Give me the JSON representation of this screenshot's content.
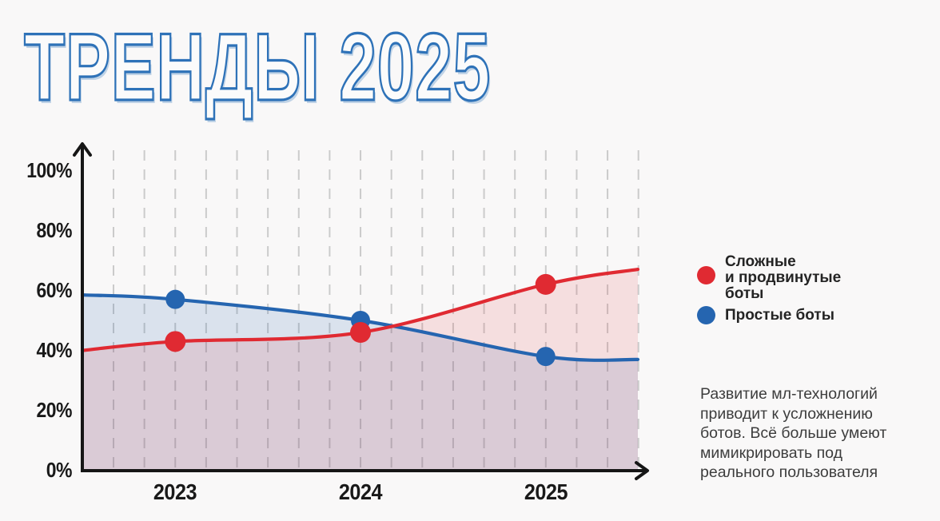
{
  "title": {
    "text": "ТРЕНДЫ 2025",
    "outline_color": "#2e72b8"
  },
  "chart_data": {
    "type": "area",
    "title": "",
    "x_categories": [
      "2023",
      "2024",
      "2025"
    ],
    "y_ticks": [
      "100%",
      "80%",
      "60%",
      "40%",
      "20%",
      "0%"
    ],
    "ylim": [
      0,
      100
    ],
    "grid": "vertical-dashed, 6 minor intervals per year",
    "legend_position": "right",
    "series": [
      {
        "name": "Сложные и продвинутые боты",
        "color": "#e02a32",
        "fill": "rgba(224,42,50,0.12)",
        "values": [
          43,
          46,
          62
        ],
        "edge_start": 40,
        "edge_end": 67,
        "marker_radius": 13
      },
      {
        "name": "Простые боты",
        "color": "#2565b0",
        "fill": "rgba(37,101,176,0.15)",
        "values": [
          57,
          50,
          38
        ],
        "edge_start": 58.5,
        "edge_end": 37,
        "marker_radius": 12
      }
    ]
  },
  "legend": {
    "items": [
      {
        "label_lines": [
          "Сложные",
          "и продвинутые",
          "боты"
        ],
        "color": "#e02a32"
      },
      {
        "label_lines": [
          "Простые боты"
        ],
        "color": "#2565b0"
      }
    ]
  },
  "annotation": {
    "lines": [
      "Развитие мл-технологий",
      "приводит к усложнению",
      "ботов. Всё больше умеют",
      "мимикрировать под",
      "реального пользователя"
    ]
  }
}
